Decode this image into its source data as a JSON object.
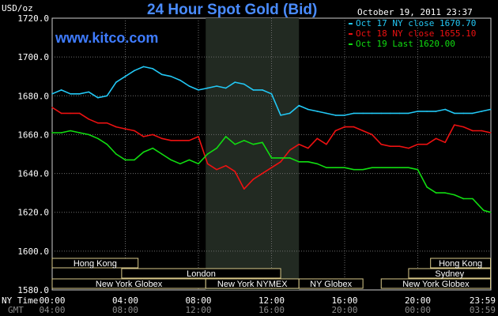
{
  "chart_data": {
    "type": "line",
    "title": "24 Hour Spot Gold (Bid)",
    "watermark": "www.kitco.com",
    "date_label": "October 19, 2011 23:37",
    "y_unit": "USD/oz",
    "ylim": [
      1580,
      1720
    ],
    "y_ticks": [
      "1720.0",
      "1700.0",
      "1680.0",
      "1660.0",
      "1640.0",
      "1620.0",
      "1600.0",
      "1580.0"
    ],
    "x_row_labels": {
      "ny": "NY Time",
      "gmt": "GMT"
    },
    "x_ticks": [
      "00:00",
      "04:00",
      "08:00",
      "12:00",
      "16:00",
      "20:00",
      "23:59"
    ],
    "x_ticks_gmt": [
      "04:00",
      "08:00",
      "12:00",
      "16:00",
      "20:00",
      "00:00",
      "03:59"
    ],
    "grid": true,
    "legend_position": "top-right",
    "sessions": [
      {
        "label": "Hong Kong",
        "start": 0,
        "end": 4.7,
        "row": 0
      },
      {
        "label": "London",
        "start": 3.8,
        "end": 12.5,
        "row": 1
      },
      {
        "label": "New York Globex",
        "start": 0,
        "end": 8.4,
        "row": 2
      },
      {
        "label": "New York NYMEX",
        "start": 8.4,
        "end": 13.5,
        "row": 2
      },
      {
        "label": "NY Globex",
        "start": 13.5,
        "end": 17.0,
        "row": 2
      },
      {
        "label": "Sydney",
        "start": 19.5,
        "end": 23.98,
        "row": 1
      },
      {
        "label": "Hong Kong",
        "start": 20.7,
        "end": 23.98,
        "row": 0
      },
      {
        "label": "New York Globex",
        "start": 18.0,
        "end": 23.98,
        "row": 2
      }
    ],
    "shaded_hours": [
      8.4,
      13.5
    ],
    "series": [
      {
        "name": "Oct 17 NY close 1670.70",
        "color": "#22c8f5",
        "x": [
          0,
          0.5,
          1,
          1.5,
          2,
          2.5,
          3,
          3.5,
          4,
          4.5,
          5,
          5.5,
          6,
          6.5,
          7,
          7.5,
          8,
          8.5,
          9,
          9.5,
          10,
          10.5,
          11,
          11.5,
          12,
          12.5,
          13,
          13.5,
          14,
          14.5,
          15,
          15.5,
          16,
          16.5,
          17,
          17.5,
          18,
          18.5,
          19,
          19.5,
          20,
          20.5,
          21,
          21.5,
          22,
          22.5,
          23,
          23.5,
          23.98
        ],
        "y": [
          1681,
          1683,
          1681,
          1681,
          1682,
          1679,
          1680,
          1687,
          1690,
          1693,
          1695,
          1694,
          1691,
          1690,
          1688,
          1685,
          1683,
          1684,
          1685,
          1684,
          1687,
          1686,
          1683,
          1683,
          1681,
          1670,
          1671,
          1675,
          1673,
          1672,
          1671,
          1670,
          1670,
          1671,
          1671,
          1671,
          1671,
          1671,
          1671,
          1671,
          1672,
          1672,
          1672,
          1673,
          1671,
          1671,
          1671,
          1672,
          1673
        ]
      },
      {
        "name": "Oct 18 NY close 1655.10",
        "color": "#ee1111",
        "x": [
          0,
          0.5,
          1,
          1.5,
          2,
          2.5,
          3,
          3.5,
          4,
          4.5,
          5,
          5.5,
          6,
          6.5,
          7,
          7.5,
          8,
          8.5,
          9,
          9.5,
          10,
          10.5,
          11,
          11.5,
          12,
          12.5,
          13,
          13.5,
          14,
          14.5,
          15,
          15.5,
          16,
          16.5,
          17,
          17.5,
          18,
          18.5,
          19,
          19.5,
          20,
          20.5,
          21,
          21.5,
          22,
          22.5,
          23,
          23.5,
          23.98
        ],
        "y": [
          1674,
          1671,
          1671,
          1671,
          1668,
          1666,
          1666,
          1664,
          1663,
          1662,
          1659,
          1660,
          1658,
          1657,
          1657,
          1657,
          1659,
          1645,
          1642,
          1644,
          1641,
          1632,
          1637,
          1640,
          1643,
          1646,
          1652,
          1655,
          1653,
          1658,
          1655,
          1662,
          1664,
          1664,
          1662,
          1660,
          1655,
          1654,
          1654,
          1653,
          1655,
          1655,
          1658,
          1656,
          1665,
          1664,
          1662,
          1662,
          1661
        ]
      },
      {
        "name": "Oct 19 Last 1620.00",
        "color": "#11dd11",
        "x": [
          0,
          0.5,
          1,
          1.5,
          2,
          2.5,
          3,
          3.5,
          4,
          4.5,
          5,
          5.5,
          6,
          6.5,
          7,
          7.5,
          8,
          8.5,
          9,
          9.5,
          10,
          10.5,
          11,
          11.5,
          12,
          12.5,
          13,
          13.5,
          14,
          14.5,
          15,
          15.5,
          16,
          16.5,
          17,
          17.5,
          18,
          18.5,
          19,
          19.5,
          20,
          20.5,
          21,
          21.5,
          22,
          22.5,
          23,
          23.3,
          23.6,
          23.98
        ],
        "y": [
          1661,
          1661,
          1662,
          1661,
          1660,
          1658,
          1655,
          1650,
          1647,
          1647,
          1651,
          1653,
          1650,
          1647,
          1645,
          1647,
          1645,
          1650,
          1653,
          1659,
          1655,
          1657,
          1655,
          1656,
          1648,
          1648,
          1648,
          1646,
          1646,
          1645,
          1643,
          1643,
          1643,
          1642,
          1642,
          1643,
          1643,
          1643,
          1643,
          1643,
          1642,
          1633,
          1630,
          1630,
          1629,
          1627,
          1627,
          1624,
          1621,
          1620
        ]
      }
    ]
  }
}
